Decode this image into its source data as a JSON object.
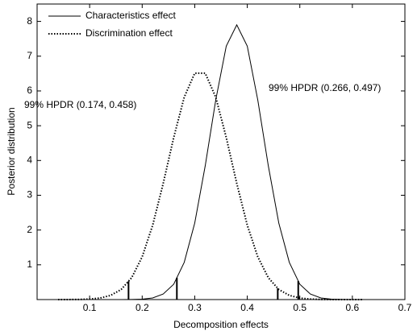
{
  "chart_data": {
    "type": "line",
    "xlabel": "Decomposition effects",
    "ylabel": "Posterior distribution",
    "x": [
      0.04,
      0.06,
      0.08,
      0.1,
      0.12,
      0.14,
      0.16,
      0.18,
      0.2,
      0.22,
      0.24,
      0.26,
      0.28,
      0.3,
      0.32,
      0.34,
      0.36,
      0.38,
      0.4,
      0.42,
      0.44,
      0.46,
      0.48,
      0.5,
      0.52,
      0.54,
      0.56,
      0.58,
      0.6,
      0.62
    ],
    "series": [
      {
        "name": "Characteristics effect",
        "color": "#000000",
        "dash": "solid",
        "values": [
          0,
          0,
          0,
          0,
          0,
          0,
          0,
          0.003,
          0.012,
          0.047,
          0.16,
          0.44,
          1.07,
          2.2,
          3.85,
          5.74,
          7.29,
          7.9,
          7.29,
          5.74,
          3.85,
          2.2,
          1.07,
          0.44,
          0.16,
          0.047,
          0.012,
          0.003,
          0,
          0
        ]
      },
      {
        "name": "Discrimination effect",
        "color": "#000000",
        "dash": "dotted",
        "values": [
          0,
          0.001,
          0.004,
          0.014,
          0.044,
          0.12,
          0.29,
          0.63,
          1.23,
          2.14,
          3.34,
          4.66,
          5.82,
          6.51,
          6.51,
          5.82,
          4.66,
          3.34,
          2.14,
          1.23,
          0.63,
          0.29,
          0.12,
          0.044,
          0.014,
          0.004,
          0.001,
          0,
          0,
          0
        ]
      }
    ],
    "annotations": [
      {
        "text": "99% HPDR (0.174, 0.458)",
        "series": 1,
        "interval": [
          0.174,
          0.458
        ]
      },
      {
        "text": "99% HPDR (0.266, 0.497)",
        "series": 0,
        "interval": [
          0.266,
          0.497
        ]
      }
    ],
    "xlim": [
      0,
      0.7
    ],
    "xticks": [
      0.1,
      0.2,
      0.3,
      0.4,
      0.5,
      0.6,
      0.7
    ],
    "ylim": [
      0,
      8.5
    ],
    "yticks": [
      1,
      2,
      3,
      4,
      5,
      6,
      7,
      8
    ],
    "legend": "upper-left",
    "grid": false
  }
}
